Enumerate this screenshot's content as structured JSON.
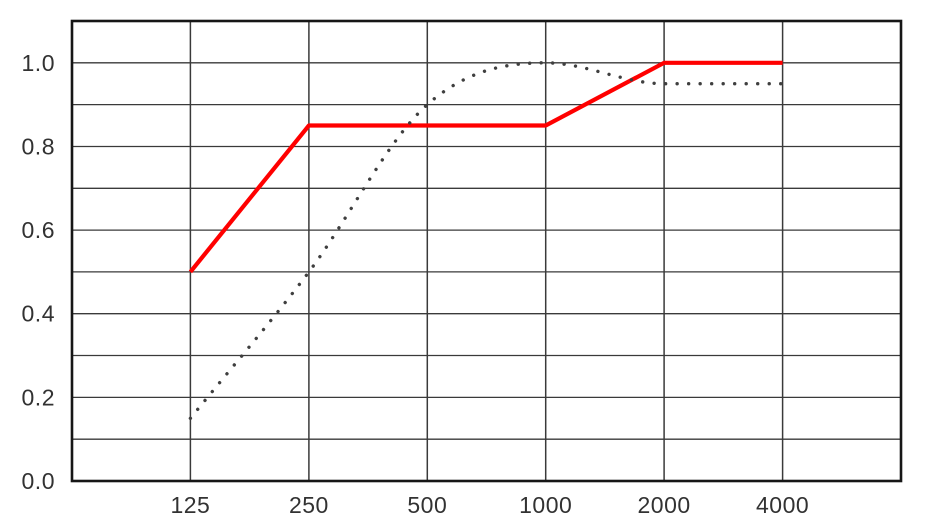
{
  "chart_data": {
    "type": "line",
    "title": "",
    "xlabel": "",
    "ylabel": "",
    "x_scale": "log2",
    "x_range": [
      62.5,
      8000
    ],
    "x_tick_values": [
      125,
      250,
      500,
      1000,
      2000,
      4000
    ],
    "x_tick_labels": [
      "125",
      "250",
      "500",
      "1000",
      "2000",
      "4000"
    ],
    "ylim": [
      0,
      1.1
    ],
    "y_gridline_step": 0.1,
    "y_tick_values": [
      0.0,
      0.2,
      0.4,
      0.6,
      0.8,
      1.0
    ],
    "y_tick_labels": [
      "0.0",
      "0.2",
      "0.4",
      "0.6",
      "0.8",
      "1.0"
    ],
    "grid": true,
    "legend": "none",
    "series": [
      {
        "name": "solid-red-line",
        "style": "solid",
        "smooth": false,
        "color": "#ff0000",
        "stroke_width": 4.2,
        "x": [
          125,
          250,
          500,
          1000,
          2000,
          4000
        ],
        "values": [
          0.5,
          0.85,
          0.85,
          0.85,
          1.0,
          1.0
        ]
      },
      {
        "name": "dotted-gray-line",
        "style": "dotted",
        "smooth": true,
        "color": "#3f3f3f",
        "stroke_width": 3.4,
        "dot_pitch": 11.5,
        "x": [
          125,
          250,
          500,
          1000,
          2000,
          4000
        ],
        "values": [
          0.15,
          0.5,
          0.9,
          1.0,
          0.95,
          0.95
        ]
      }
    ],
    "colors": {
      "background": "#ffffff",
      "grid": "#3a3a3a",
      "border": "#161616",
      "tick_text": "#323232"
    }
  }
}
